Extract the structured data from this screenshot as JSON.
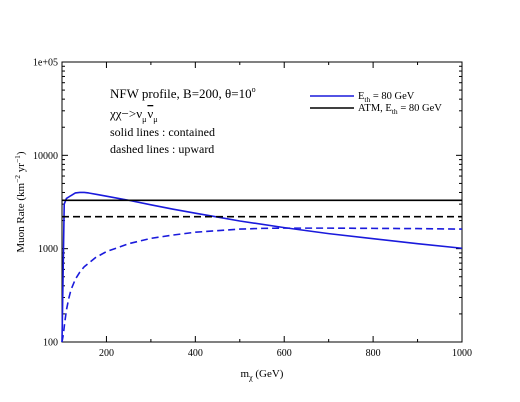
{
  "chart_data": {
    "type": "line",
    "title": "",
    "xlabel_main": "m",
    "xlabel_sub": "χ",
    "xlabel_unit": " (GeV)",
    "ylabel": {
      "pre": "Muon Rate (km",
      "sup1": "−2",
      "mid": " yr",
      "sup2": "−1",
      "post": ")"
    },
    "xlim": [
      100,
      1000
    ],
    "ylim": [
      100,
      100000
    ],
    "yscale": "log",
    "x_ticks": [
      200,
      400,
      600,
      800,
      1000
    ],
    "x_tick_labels": [
      "200",
      "400",
      "600",
      "800",
      "1000"
    ],
    "y_ticks": [
      100,
      1000,
      10000,
      100000
    ],
    "y_tick_labels": [
      "100",
      "1000",
      "10000",
      "1e+05"
    ],
    "annotations": {
      "line1_pre": "NFW profile, B=200, θ=10",
      "line1_sup": "o",
      "line2_main": "χχ−>ν",
      "line2_sub1": "μ",
      "line2_nubar": "ν",
      "line2_sub2": "μ",
      "line3": "solid lines : contained",
      "line4": "dashed lines : upward"
    },
    "legend": {
      "placement": "top-right",
      "entries": [
        {
          "pre": "E",
          "sub": "th",
          "post": " = 80 GeV",
          "color": "#1a1adc"
        },
        {
          "pre": "ATM, E",
          "sub": "th",
          "post": " = 80 GeV",
          "color": "#000000"
        }
      ]
    },
    "series": [
      {
        "color": "#1a1adc",
        "style": "solid",
        "x": [
          100,
          105,
          110,
          120,
          130,
          140,
          150,
          160,
          180,
          200,
          250,
          300,
          350,
          400,
          450,
          500,
          600,
          700,
          800,
          900,
          1000
        ],
        "y": [
          100,
          3000,
          3450,
          3700,
          3950,
          4000,
          4000,
          3950,
          3800,
          3650,
          3300,
          2950,
          2650,
          2400,
          2180,
          1980,
          1680,
          1450,
          1280,
          1130,
          1010
        ]
      },
      {
        "color": "#1a1adc",
        "style": "dashed",
        "x": [
          100,
          103,
          106,
          110,
          115,
          120,
          130,
          140,
          150,
          175,
          200,
          250,
          300,
          350,
          400,
          500,
          550,
          600,
          700,
          800,
          900,
          1000
        ],
        "y": [
          100,
          120,
          160,
          220,
          290,
          360,
          470,
          560,
          640,
          800,
          930,
          1130,
          1290,
          1400,
          1500,
          1620,
          1650,
          1660,
          1660,
          1650,
          1640,
          1620
        ]
      },
      {
        "color": "#000000",
        "style": "solid",
        "x": [
          100,
          1000
        ],
        "y": [
          3300,
          3300
        ]
      },
      {
        "color": "#000000",
        "style": "dashed",
        "x": [
          100,
          1000
        ],
        "y": [
          2200,
          2200
        ]
      }
    ]
  }
}
